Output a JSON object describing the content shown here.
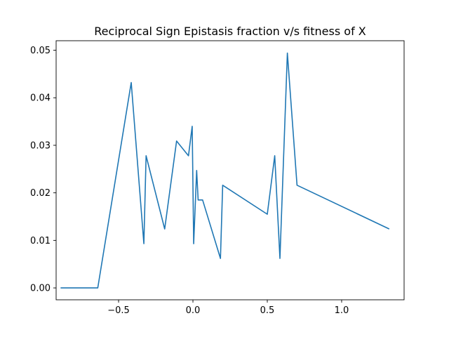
{
  "chart_data": {
    "type": "line",
    "title": "Reciprocal Sign Epistasis fraction v/s fitness of X",
    "xlabel": "",
    "ylabel": "",
    "xlim": [
      -0.92,
      1.42
    ],
    "ylim": [
      -0.0025,
      0.052
    ],
    "x_ticks": [
      -0.5,
      0.0,
      0.5,
      1.0
    ],
    "x_tick_labels": [
      "−0.5",
      "0.0",
      "0.5",
      "1.0"
    ],
    "y_ticks": [
      0.0,
      0.01,
      0.02,
      0.03,
      0.04,
      0.05
    ],
    "y_tick_labels": [
      "0.00",
      "0.01",
      "0.02",
      "0.03",
      "0.04",
      "0.05"
    ],
    "grid": false,
    "line_color": "#1f77b4",
    "series": [
      {
        "x": [
          -0.89,
          -0.64,
          -0.415,
          -0.33,
          -0.315,
          -0.19,
          -0.11,
          -0.03,
          -0.005,
          0.005,
          0.025,
          0.035,
          0.065,
          0.185,
          0.2,
          0.5,
          0.55,
          0.585,
          0.635,
          0.7,
          1.32
        ],
        "y": [
          0.0,
          0.0,
          0.0432,
          0.0093,
          0.0278,
          0.0124,
          0.0309,
          0.0278,
          0.034,
          0.0093,
          0.0247,
          0.0185,
          0.0185,
          0.0062,
          0.0216,
          0.0155,
          0.0278,
          0.0062,
          0.0494,
          0.0216,
          0.0124
        ]
      }
    ]
  }
}
